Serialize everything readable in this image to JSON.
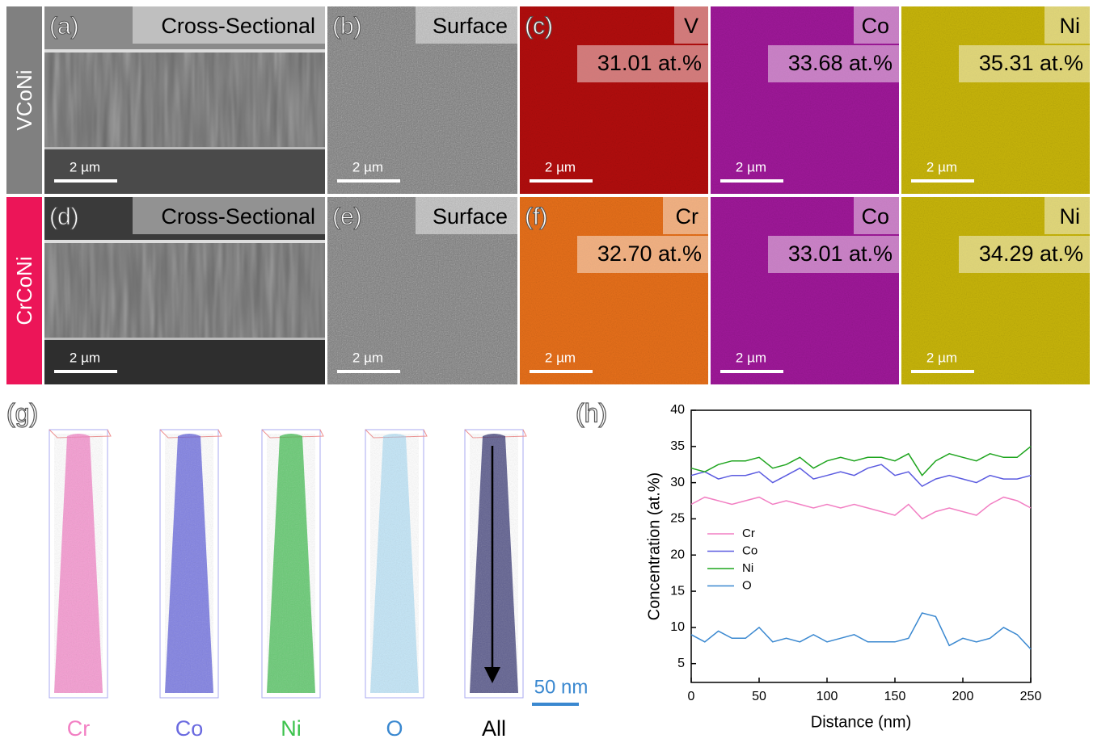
{
  "rows": [
    {
      "label": "VCoNi",
      "panels": [
        {
          "tag": "(a)",
          "title": "Cross-Sectional",
          "scale": "2 µm"
        },
        {
          "tag": "(b)",
          "title": "Surface",
          "scale": "2 µm"
        },
        {
          "tag": "(c)",
          "title": "V",
          "value": "31.01 at.%",
          "scale": "2 µm"
        },
        {
          "title": "Co",
          "value": "33.68 at.%",
          "scale": "2 µm"
        },
        {
          "title": "Ni",
          "value": "35.31 at.%",
          "scale": "2 µm"
        }
      ]
    },
    {
      "label": "CrCoNi",
      "panels": [
        {
          "tag": "(d)",
          "title": "Cross-Sectional",
          "scale": "2 µm"
        },
        {
          "tag": "(e)",
          "title": "Surface",
          "scale": "2 µm"
        },
        {
          "tag": "(f)",
          "title": "Cr",
          "value": "32.70 at.%",
          "scale": "2 µm"
        },
        {
          "title": "Co",
          "value": "33.01 at.%",
          "scale": "2 µm"
        },
        {
          "title": "Ni",
          "value": "34.29 at.%",
          "scale": "2 µm"
        }
      ]
    }
  ],
  "apt": {
    "tag": "(g)",
    "labels": [
      "Cr",
      "Co",
      "Ni",
      "O",
      "All"
    ],
    "scale": "50 nm"
  },
  "plot_tag": "(h)",
  "chart_data": {
    "type": "line",
    "x_label": "Distance (nm)",
    "y_label": "Concentration (at.%)",
    "x": [
      0,
      10,
      20,
      30,
      40,
      50,
      60,
      70,
      80,
      90,
      100,
      110,
      120,
      130,
      140,
      150,
      160,
      170,
      180,
      190,
      200,
      210,
      220,
      230,
      240,
      250
    ],
    "series": [
      {
        "name": "Cr",
        "color": "#f27fc3",
        "values": [
          27,
          28,
          27.5,
          27,
          27.5,
          28,
          27,
          27.5,
          27,
          26.5,
          27,
          26.5,
          27,
          26.5,
          26,
          25.5,
          27,
          25,
          26,
          26.5,
          26,
          25.5,
          27,
          28,
          27.5,
          26.5
        ]
      },
      {
        "name": "Co",
        "color": "#5b5be0",
        "values": [
          31,
          31.5,
          30.5,
          31,
          31,
          31.5,
          30,
          31,
          32,
          30.5,
          31,
          31.5,
          31,
          32,
          32.5,
          31,
          31.5,
          29.5,
          30.5,
          31,
          30.5,
          30,
          31,
          30.5,
          30.5,
          31
        ]
      },
      {
        "name": "Ni",
        "color": "#1fa51f",
        "values": [
          32,
          31.5,
          32.5,
          33,
          33,
          33.5,
          32,
          32.5,
          33.5,
          32,
          33,
          33.5,
          33,
          33.5,
          33.5,
          33,
          34,
          31,
          33,
          34,
          33.5,
          33,
          34,
          33.5,
          33.5,
          35
        ]
      },
      {
        "name": "O",
        "color": "#3a88d0",
        "values": [
          9,
          8,
          9.5,
          8.5,
          8.5,
          10,
          8,
          8.5,
          8,
          9,
          8,
          8.5,
          9,
          8,
          8,
          8,
          8.5,
          12,
          11.5,
          7.5,
          8.5,
          8,
          8.5,
          10,
          9,
          7
        ]
      }
    ],
    "xlim": [
      0,
      250
    ],
    "xticks": [
      0,
      50,
      100,
      150,
      200,
      250
    ],
    "ylim": [
      2.4,
      40
    ],
    "yticks": [
      5,
      10,
      15,
      20,
      25,
      30,
      35,
      40
    ]
  }
}
